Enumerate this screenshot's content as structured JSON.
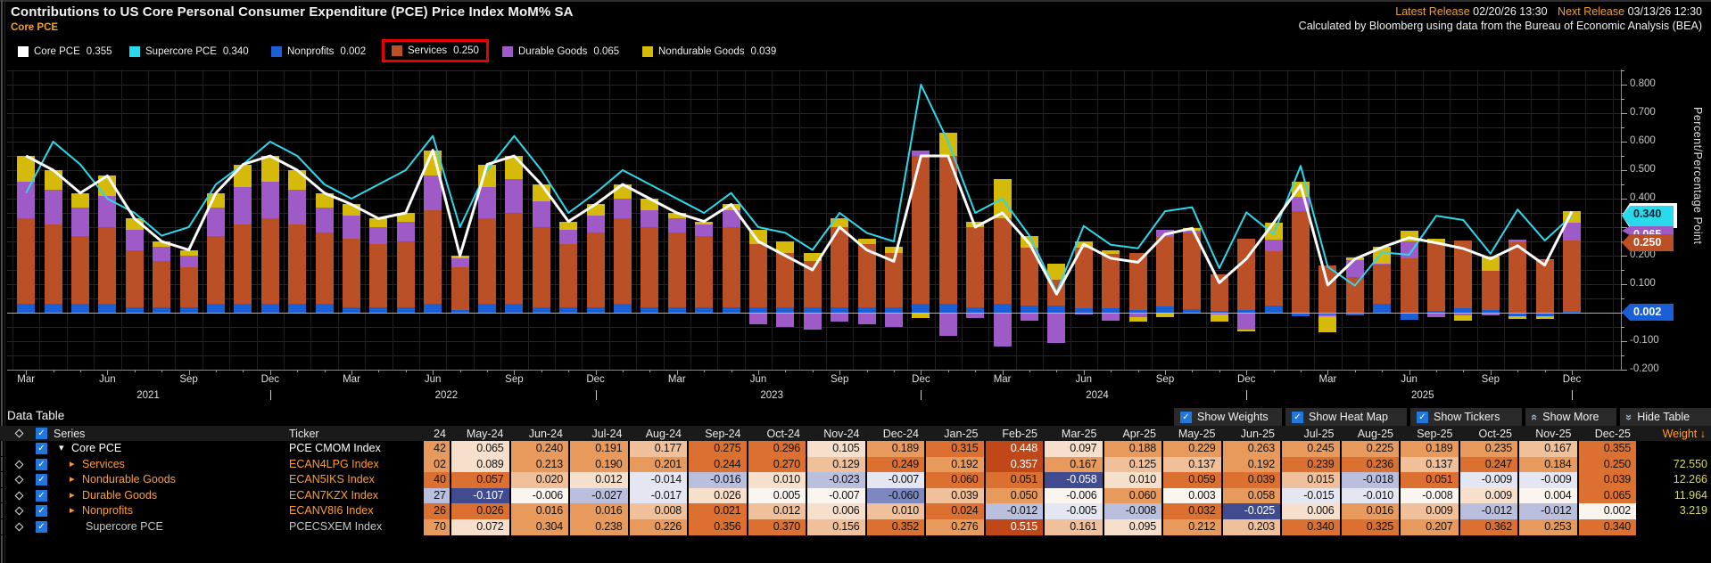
{
  "header": {
    "title": "Contributions to US Core Personal Consumer Expenditure (PCE) Price Index MoM% SA",
    "subtitle": "Core PCE",
    "latest_release_label": "Latest Release",
    "latest_release_value": "02/20/26 13:30",
    "next_release_label": "Next Release",
    "next_release_value": "03/13/26 12:30",
    "source_note": "Calculated by Bloomberg using data from the Bureau of Economic Analysis (BEA)"
  },
  "colors": {
    "core_pce": "#ffffff",
    "supercore_pce": "#2bd9ec",
    "nonprofits": "#1a5fd6",
    "services": "#bb4f26",
    "durable_goods": "#9e5bc8",
    "nondurable_goods": "#d6ba0a",
    "highlight_box": "#e60000",
    "accent_orange": "#f0a030",
    "weight_yellow": "#d8d85f"
  },
  "legend": {
    "items": [
      {
        "label": "Core PCE",
        "value": "0.355",
        "color": "#ffffff",
        "highlighted": false
      },
      {
        "label": "Supercore PCE",
        "value": "0.340",
        "color": "#2bd9ec",
        "highlighted": false
      },
      {
        "label": "Nonprofits",
        "value": "0.002",
        "color": "#1a5fd6",
        "highlighted": false
      },
      {
        "label": "Services",
        "value": "0.250",
        "color": "#bb4f26",
        "highlighted": true
      },
      {
        "label": "Durable Goods",
        "value": "0.065",
        "color": "#9e5bc8",
        "highlighted": false
      },
      {
        "label": "Nondurable Goods",
        "value": "0.039",
        "color": "#d6ba0a",
        "highlighted": false
      }
    ]
  },
  "chart_data": {
    "type": "stacked-bar+line",
    "title": "Contributions to US Core PCE Price Index MoM% SA",
    "ylabel": "Percent/Percentage Point",
    "ylim": [
      -0.2,
      0.85
    ],
    "ytick_step": 0.1,
    "grid": true,
    "categories": [
      "Mar-21",
      "Apr-21",
      "May-21",
      "Jun-21",
      "Jul-21",
      "Aug-21",
      "Sep-21",
      "Oct-21",
      "Nov-21",
      "Dec-21",
      "Jan-22",
      "Feb-22",
      "Mar-22",
      "Apr-22",
      "May-22",
      "Jun-22",
      "Jul-22",
      "Aug-22",
      "Sep-22",
      "Oct-22",
      "Nov-22",
      "Dec-22",
      "Jan-23",
      "Feb-23",
      "Mar-23",
      "Apr-23",
      "May-23",
      "Jun-23",
      "Jul-23",
      "Aug-23",
      "Sep-23",
      "Oct-23",
      "Nov-23",
      "Dec-23",
      "Jan-24",
      "Feb-24",
      "Mar-24",
      "Apr-24",
      "May-24",
      "Jun-24",
      "Jul-24",
      "Aug-24",
      "Sep-24",
      "Oct-24",
      "Nov-24",
      "Dec-24",
      "Jan-25",
      "Feb-25",
      "Mar-25",
      "Apr-25",
      "May-25",
      "Jun-25",
      "Jul-25",
      "Aug-25",
      "Sep-25",
      "Oct-25",
      "Nov-25",
      "Dec-25"
    ],
    "bar_series": [
      {
        "name": "Nonprofits",
        "color": "#1a5fd6",
        "values": [
          0.03,
          0.03,
          0.03,
          0.03,
          0.02,
          0.02,
          0.02,
          0.03,
          0.03,
          0.03,
          0.03,
          0.03,
          0.02,
          0.02,
          0.02,
          0.03,
          0.01,
          0.03,
          0.03,
          0.02,
          0.02,
          0.02,
          0.03,
          0.02,
          0.02,
          0.02,
          0.02,
          0.02,
          0.02,
          0.02,
          0.02,
          0.02,
          0.02,
          0.03,
          0.03,
          0.02,
          0.03,
          0.026,
          0.026,
          0.016,
          0.016,
          0.008,
          0.021,
          0.012,
          0.006,
          0.01,
          0.024,
          -0.012,
          -0.005,
          -0.008,
          0.032,
          -0.025,
          0.006,
          0.016,
          0.009,
          -0.012,
          -0.012,
          0.002
        ]
      },
      {
        "name": "Services",
        "color": "#bb4f26",
        "values": [
          0.3,
          0.28,
          0.24,
          0.27,
          0.2,
          0.16,
          0.14,
          0.24,
          0.28,
          0.3,
          0.28,
          0.25,
          0.24,
          0.22,
          0.23,
          0.33,
          0.15,
          0.3,
          0.32,
          0.28,
          0.22,
          0.26,
          0.3,
          0.28,
          0.26,
          0.25,
          0.28,
          0.22,
          0.19,
          0.16,
          0.28,
          0.22,
          0.19,
          0.52,
          0.52,
          0.28,
          0.3,
          0.202,
          0.089,
          0.213,
          0.19,
          0.201,
          0.244,
          0.27,
          0.129,
          0.249,
          0.192,
          0.357,
          0.167,
          0.125,
          0.137,
          0.192,
          0.239,
          0.236,
          0.137,
          0.247,
          0.184,
          0.25
        ]
      },
      {
        "name": "Durable Goods",
        "color": "#9e5bc8",
        "values": [
          0.13,
          0.12,
          0.1,
          0.11,
          0.07,
          0.05,
          0.04,
          0.1,
          0.13,
          0.13,
          0.12,
          0.09,
          0.08,
          0.06,
          0.07,
          0.12,
          0.03,
          0.11,
          0.12,
          0.09,
          0.05,
          0.06,
          0.07,
          0.06,
          0.05,
          0.04,
          0.06,
          -0.04,
          -0.05,
          -0.06,
          -0.03,
          -0.04,
          -0.05,
          0.02,
          -0.08,
          -0.02,
          -0.12,
          -0.027,
          -0.107,
          -0.006,
          -0.027,
          -0.017,
          0.026,
          0.005,
          -0.007,
          -0.06,
          0.039,
          0.05,
          -0.006,
          0.06,
          0.003,
          0.058,
          -0.015,
          -0.01,
          -0.008,
          0.009,
          0.004,
          0.065
        ]
      },
      {
        "name": "Nondurable Goods",
        "color": "#d6ba0a",
        "values": [
          0.09,
          0.07,
          0.05,
          0.07,
          0.04,
          0.02,
          0.02,
          0.05,
          0.08,
          0.09,
          0.07,
          0.05,
          0.04,
          0.03,
          0.03,
          0.09,
          0.01,
          0.08,
          0.08,
          0.06,
          0.03,
          0.04,
          0.05,
          0.04,
          0.02,
          0.01,
          0.02,
          0.05,
          0.04,
          0.03,
          0.03,
          0.02,
          0.02,
          -0.02,
          0.08,
          0.02,
          0.14,
          0.04,
          0.057,
          0.02,
          0.012,
          -0.014,
          -0.016,
          0.01,
          -0.023,
          -0.007,
          0.06,
          0.051,
          -0.058,
          0.01,
          0.059,
          0.039,
          0.015,
          -0.018,
          0.051,
          -0.009,
          -0.009,
          0.039
        ]
      }
    ],
    "line_series": [
      {
        "name": "Supercore PCE",
        "color": "#2bd9ec",
        "width": 2,
        "values": [
          0.42,
          0.6,
          0.52,
          0.4,
          0.35,
          0.27,
          0.3,
          0.45,
          0.52,
          0.6,
          0.55,
          0.45,
          0.4,
          0.45,
          0.5,
          0.62,
          0.3,
          0.5,
          0.62,
          0.5,
          0.35,
          0.42,
          0.5,
          0.45,
          0.4,
          0.35,
          0.42,
          0.3,
          0.28,
          0.22,
          0.35,
          0.28,
          0.25,
          0.8,
          0.6,
          0.35,
          0.4,
          0.27,
          0.072,
          0.304,
          0.238,
          0.226,
          0.356,
          0.37,
          0.156,
          0.352,
          0.276,
          0.515,
          0.161,
          0.095,
          0.212,
          0.203,
          0.34,
          0.325,
          0.207,
          0.362,
          0.253,
          0.34
        ]
      },
      {
        "name": "Core PCE",
        "color": "#ffffff",
        "width": 3,
        "values": [
          0.55,
          0.5,
          0.42,
          0.48,
          0.33,
          0.25,
          0.22,
          0.42,
          0.52,
          0.55,
          0.5,
          0.42,
          0.38,
          0.33,
          0.35,
          0.57,
          0.2,
          0.52,
          0.55,
          0.45,
          0.32,
          0.38,
          0.45,
          0.4,
          0.35,
          0.32,
          0.38,
          0.25,
          0.2,
          0.15,
          0.3,
          0.22,
          0.18,
          0.55,
          0.55,
          0.3,
          0.35,
          0.242,
          0.065,
          0.24,
          0.191,
          0.177,
          0.275,
          0.296,
          0.105,
          0.189,
          0.315,
          0.448,
          0.097,
          0.188,
          0.229,
          0.263,
          0.245,
          0.225,
          0.189,
          0.235,
          0.167,
          0.355
        ]
      }
    ],
    "axis_badges": [
      {
        "text": "0.355",
        "bg": "#ffffff",
        "fg": "#000000"
      },
      {
        "text": "0.340",
        "bg": "#2bd9ec",
        "fg": "#002228"
      },
      {
        "text": "0.065",
        "bg": "#9e5bc8",
        "fg": "#ffffff"
      },
      {
        "text": "0.250",
        "bg": "#bb4f26",
        "fg": "#ffffff"
      },
      {
        "text": "0.002",
        "bg": "#1a5fd6",
        "fg": "#ffffff"
      }
    ]
  },
  "table": {
    "title": "Data Table",
    "controls": {
      "show_weights": "Show Weights",
      "show_heat_map": "Show Heat Map",
      "show_tickers": "Show Tickers",
      "show_more": "Show More",
      "hide_table": "Hide Table"
    },
    "series_header": "Series",
    "ticker_header": "Ticker",
    "partial_month_header": "24",
    "month_headers": [
      "May-24",
      "Jun-24",
      "Jul-24",
      "Aug-24",
      "Sep-24",
      "Oct-24",
      "Nov-24",
      "Dec-24",
      "Jan-25",
      "Feb-25",
      "Mar-25",
      "Apr-25",
      "May-25",
      "Jun-25",
      "Jul-25",
      "Aug-25",
      "Sep-25",
      "Oct-25",
      "Nov-25",
      "Dec-25"
    ],
    "weight_header": "Weight",
    "rows": [
      {
        "name": "Core PCE",
        "ticker": "PCE CMOM Index",
        "name_color": "#ffffff",
        "expander": "down",
        "indent": 18,
        "show_diamond": false,
        "partial_text": "42",
        "partial_value": 0.242,
        "values": [
          0.065,
          0.24,
          0.191,
          0.177,
          0.275,
          0.296,
          0.105,
          0.189,
          0.315,
          0.448,
          0.097,
          0.188,
          0.229,
          0.263,
          0.245,
          0.225,
          0.189,
          0.235,
          0.167,
          0.355
        ],
        "weight": ""
      },
      {
        "name": "Services",
        "ticker": "ECAN4LPG Index",
        "name_color": "#ff9d2e",
        "expander": "right",
        "indent": 30,
        "show_diamond": true,
        "partial_text": "02",
        "partial_value": 0.202,
        "values": [
          0.089,
          0.213,
          0.19,
          0.201,
          0.244,
          0.27,
          0.129,
          0.249,
          0.192,
          0.357,
          0.167,
          0.125,
          0.137,
          0.192,
          0.239,
          0.236,
          0.137,
          0.247,
          0.184,
          0.25
        ],
        "weight": "72.550"
      },
      {
        "name": "Nondurable Goods",
        "ticker": "ECAN5IKS Index",
        "name_color": "#ff9d2e",
        "expander": "right",
        "indent": 30,
        "show_diamond": true,
        "partial_text": "40",
        "partial_value": 0.04,
        "values": [
          0.057,
          0.02,
          0.012,
          -0.014,
          -0.016,
          0.01,
          -0.023,
          -0.007,
          0.06,
          0.051,
          -0.058,
          0.01,
          0.059,
          0.039,
          0.015,
          -0.018,
          0.051,
          -0.009,
          -0.009,
          0.039
        ],
        "weight": "12.266"
      },
      {
        "name": "Durable Goods",
        "ticker": "ECAN7KZX Index",
        "name_color": "#ff9d2e",
        "expander": "right",
        "indent": 30,
        "show_diamond": true,
        "partial_text": "27",
        "partial_value": -0.027,
        "values": [
          -0.107,
          -0.006,
          -0.027,
          -0.017,
          0.026,
          0.005,
          -0.007,
          -0.06,
          0.039,
          0.05,
          -0.006,
          0.06,
          0.003,
          0.058,
          -0.015,
          -0.01,
          -0.008,
          0.009,
          0.004,
          0.065
        ],
        "weight": "11.964"
      },
      {
        "name": "Nonprofits",
        "ticker": "ECANV8I6 Index",
        "name_color": "#ff9d2e",
        "expander": "right",
        "indent": 30,
        "show_diamond": true,
        "partial_text": "26",
        "partial_value": 0.026,
        "values": [
          0.026,
          0.016,
          0.016,
          0.008,
          0.021,
          0.012,
          0.006,
          0.01,
          0.024,
          -0.012,
          -0.005,
          -0.008,
          0.032,
          -0.025,
          0.006,
          0.016,
          0.009,
          -0.012,
          -0.012,
          0.002
        ],
        "weight": "3.219"
      },
      {
        "name": "Supercore PCE",
        "ticker": "PCECSXEM Index",
        "name_color": "#c6c6c6",
        "expander": "none",
        "indent": 34,
        "show_diamond": true,
        "partial_text": "70",
        "partial_value": 0.27,
        "values": [
          0.072,
          0.304,
          0.238,
          0.226,
          0.356,
          0.37,
          0.156,
          0.352,
          0.276,
          0.515,
          0.161,
          0.095,
          0.212,
          0.203,
          0.34,
          0.325,
          0.207,
          0.362,
          0.253,
          0.34
        ],
        "weight": ""
      }
    ]
  }
}
